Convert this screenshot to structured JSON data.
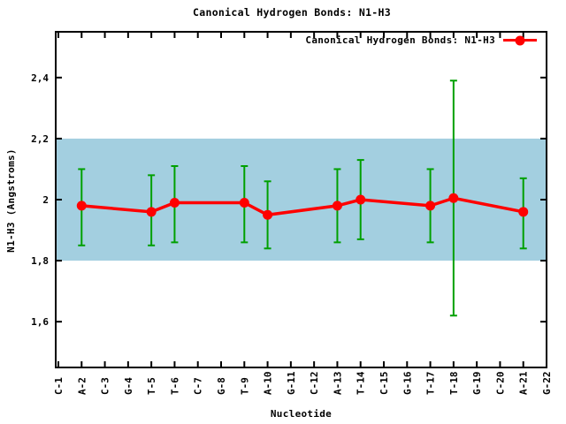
{
  "title": "Canonical Hydrogen Bonds: N1-H3",
  "legend": {
    "label": "Canonical Hydrogen Bonds: N1-H3"
  },
  "axes": {
    "x_label": "Nucleotide",
    "y_label": "N1-H3 (Angstroms)"
  },
  "colors": {
    "background": "#ffffff",
    "border": "#000000",
    "band": "#a3cfe0",
    "series": "#ff0000",
    "error_bars": "#00a000"
  },
  "chart_data": {
    "type": "line",
    "title": "Canonical Hydrogen Bonds: N1-H3",
    "xlabel": "Nucleotide",
    "ylabel": "N1-H3 (Angstroms)",
    "ylim": [
      1.45,
      2.55
    ],
    "grid": false,
    "legend_position": "top-right-inside",
    "categories": [
      "C-1",
      "A-2",
      "C-3",
      "G-4",
      "T-5",
      "T-6",
      "C-7",
      "G-8",
      "T-9",
      "A-10",
      "G-11",
      "C-12",
      "A-13",
      "T-14",
      "C-15",
      "G-16",
      "T-17",
      "T-18",
      "G-19",
      "C-20",
      "A-21",
      "G-22"
    ],
    "y_ticks": [
      {
        "value": 1.6,
        "label": "1,6"
      },
      {
        "value": 1.8,
        "label": "1,8"
      },
      {
        "value": 2.0,
        "label": "2"
      },
      {
        "value": 2.2,
        "label": "2,2"
      },
      {
        "value": 2.4,
        "label": "2,4"
      }
    ],
    "band": {
      "ymin": 1.8,
      "ymax": 2.2
    },
    "series": [
      {
        "name": "Canonical Hydrogen Bonds: N1-H3",
        "points": [
          {
            "category": "A-2",
            "y": 1.98,
            "ylow": 1.85,
            "yhigh": 2.1
          },
          {
            "category": "T-5",
            "y": 1.96,
            "ylow": 1.85,
            "yhigh": 2.08
          },
          {
            "category": "T-6",
            "y": 1.99,
            "ylow": 1.86,
            "yhigh": 2.11
          },
          {
            "category": "T-9",
            "y": 1.99,
            "ylow": 1.86,
            "yhigh": 2.11
          },
          {
            "category": "A-10",
            "y": 1.95,
            "ylow": 1.84,
            "yhigh": 2.06
          },
          {
            "category": "A-13",
            "y": 1.98,
            "ylow": 1.86,
            "yhigh": 2.1
          },
          {
            "category": "T-14",
            "y": 2.0,
            "ylow": 1.87,
            "yhigh": 2.13
          },
          {
            "category": "T-17",
            "y": 1.98,
            "ylow": 1.86,
            "yhigh": 2.1
          },
          {
            "category": "T-18",
            "y": 2.005,
            "ylow": 1.62,
            "yhigh": 2.39
          },
          {
            "category": "A-21",
            "y": 1.96,
            "ylow": 1.84,
            "yhigh": 2.07
          }
        ]
      }
    ]
  }
}
